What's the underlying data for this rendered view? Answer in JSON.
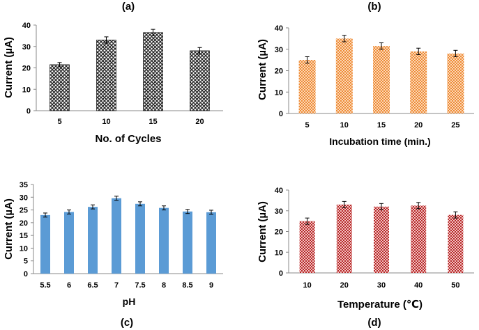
{
  "chart_data": [
    {
      "panel": "(a)",
      "type": "bar",
      "title": "",
      "xlabel": "No. of Cycles",
      "ylabel": "Current (µA)",
      "categories": [
        "5",
        "10",
        "15",
        "20"
      ],
      "values": [
        21.5,
        33,
        36.5,
        28
      ],
      "errors": [
        1,
        1.5,
        1.5,
        1.5
      ],
      "ylim": [
        0,
        40
      ],
      "yticks": [
        "0",
        "10",
        "20",
        "30",
        "40"
      ],
      "bar_style": "crosshatch",
      "bar_color": "#2b2b2b",
      "grid": false
    },
    {
      "panel": "(b)",
      "type": "bar",
      "title": "",
      "xlabel": "Incubation time (min.)",
      "ylabel": "Current (µA)",
      "categories": [
        "5",
        "10",
        "15",
        "20",
        "25"
      ],
      "values": [
        25,
        35,
        31.5,
        29,
        28
      ],
      "errors": [
        1.5,
        1.5,
        1.5,
        1.5,
        1.5
      ],
      "ylim": [
        0,
        40
      ],
      "yticks": [
        "0",
        "10",
        "20",
        "30",
        "40"
      ],
      "bar_style": "checker",
      "bar_color": "#f0964a",
      "grid": false
    },
    {
      "panel": "(c)",
      "type": "bar",
      "title": "",
      "xlabel": "pH",
      "ylabel": "Current (µA)",
      "categories": [
        "5.5",
        "6",
        "6.5",
        "7",
        "7.5",
        "8",
        "8.5",
        "9"
      ],
      "values": [
        23,
        24.2,
        26.2,
        29.6,
        27.4,
        25.8,
        24.4,
        24.1
      ],
      "errors": [
        0.8,
        0.8,
        0.8,
        0.8,
        0.8,
        0.8,
        0.8,
        0.8
      ],
      "ylim": [
        0,
        35
      ],
      "yticks": [
        "0",
        "5",
        "10",
        "15",
        "20",
        "25",
        "30",
        "35"
      ],
      "bar_style": "solid",
      "bar_color": "#5b9bd5",
      "grid": false
    },
    {
      "panel": "(d)",
      "type": "bar",
      "title": "",
      "xlabel": "Temperature (℃)",
      "ylabel": "Current (µA)",
      "categories": [
        "10",
        "20",
        "30",
        "40",
        "50"
      ],
      "values": [
        25,
        33,
        32,
        32.5,
        28
      ],
      "errors": [
        1.5,
        1.5,
        1.5,
        1.5,
        1.5
      ],
      "ylim": [
        0,
        40
      ],
      "yticks": [
        "0",
        "10",
        "20",
        "30",
        "40"
      ],
      "bar_style": "checker",
      "bar_color": "#c0392b",
      "grid": false
    }
  ]
}
